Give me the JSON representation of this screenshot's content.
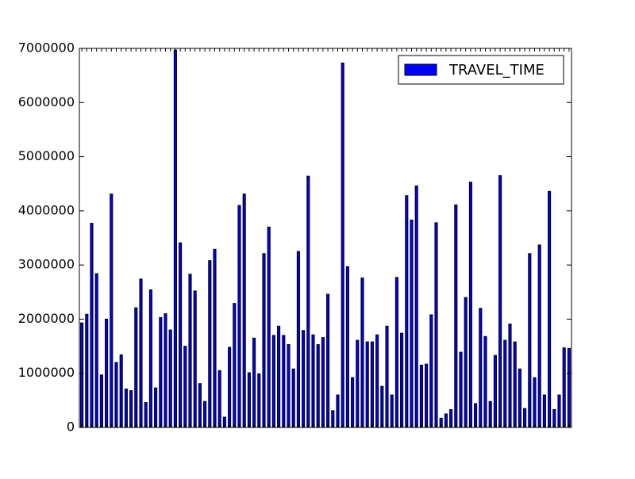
{
  "chart_data": {
    "type": "bar",
    "categories": [
      null,
      null,
      null,
      null,
      null,
      null,
      null,
      null,
      null,
      null,
      null,
      null,
      null,
      null,
      null,
      null,
      null,
      null,
      null,
      null,
      null,
      null,
      null,
      null,
      null,
      null,
      null,
      null,
      null,
      null,
      null,
      null,
      null,
      null,
      null,
      null,
      null,
      null,
      null,
      null,
      null,
      null,
      null,
      null,
      null,
      null,
      null,
      null,
      null,
      null,
      null,
      null,
      null,
      null,
      null,
      null,
      null,
      null,
      null,
      null,
      null,
      null,
      null,
      null,
      null,
      null,
      null,
      null,
      null,
      null,
      null,
      null,
      null,
      null,
      null,
      null,
      null,
      null,
      null,
      null,
      null,
      null,
      null,
      null,
      null,
      null,
      null,
      null,
      null,
      null,
      null,
      null,
      null,
      null,
      null,
      null,
      null,
      null,
      null,
      null
    ],
    "series": [
      {
        "name": "TRAVEL_TIME",
        "color": "#0000ff",
        "values": [
          1930000,
          2090000,
          3770000,
          2840000,
          970000,
          2000000,
          4310000,
          1200000,
          1340000,
          710000,
          680000,
          2210000,
          2740000,
          460000,
          2540000,
          730000,
          2030000,
          2100000,
          1800000,
          6970000,
          3410000,
          1500000,
          2830000,
          2520000,
          810000,
          480000,
          3080000,
          3290000,
          1050000,
          190000,
          1480000,
          2290000,
          4100000,
          4310000,
          1010000,
          1650000,
          990000,
          3210000,
          3700000,
          1700000,
          1870000,
          1700000,
          1530000,
          1080000,
          3250000,
          1790000,
          4640000,
          1710000,
          1530000,
          1660000,
          2460000,
          310000,
          600000,
          6730000,
          2970000,
          920000,
          1610000,
          2760000,
          1580000,
          1580000,
          1710000,
          760000,
          1870000,
          600000,
          2770000,
          1740000,
          4280000,
          3830000,
          4460000,
          1150000,
          1170000,
          2080000,
          3780000,
          170000,
          250000,
          330000,
          4110000,
          1390000,
          2400000,
          4530000,
          440000,
          2200000,
          1680000,
          480000,
          1330000,
          4650000,
          1610000,
          1910000,
          1580000,
          1080000,
          350000,
          3210000,
          920000,
          3370000,
          600000,
          4360000,
          330000,
          600000,
          1470000,
          1460000
        ]
      }
    ],
    "ylim": [
      0,
      7000000
    ],
    "yticks": [
      0,
      1000000,
      2000000,
      3000000,
      4000000,
      5000000,
      6000000,
      7000000
    ],
    "legend": "upper right"
  }
}
